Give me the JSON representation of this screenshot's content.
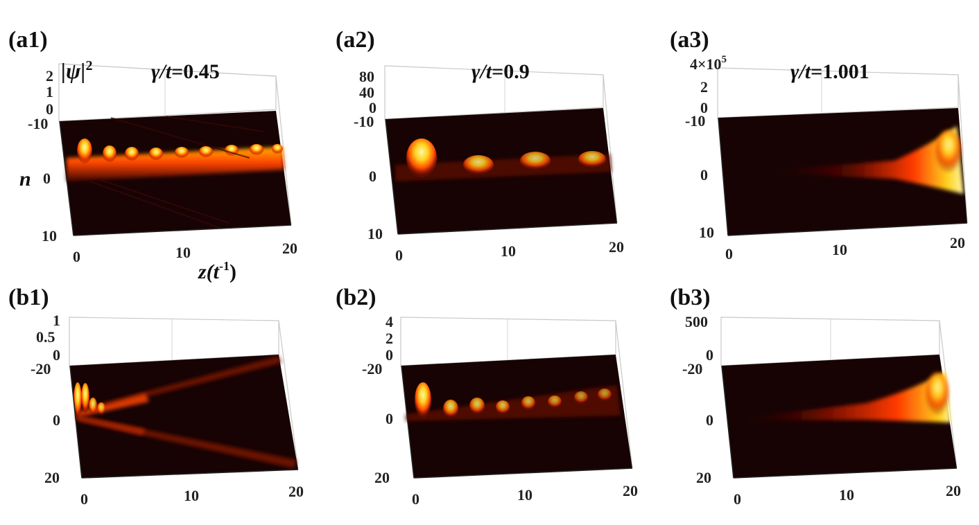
{
  "chart_data": [
    {
      "type": "surface",
      "panel": "(a1)",
      "gamma_prefix": "γ/t",
      "gamma_value": "=0.45",
      "zlabel": "|ψ|",
      "zlabel_exp": "2",
      "ylabel": "n",
      "xlabel": "z(t",
      "xlabel_exp": "-1",
      "xlabel_close": ")",
      "z_ticks": [
        "2",
        "1",
        "0"
      ],
      "n_ticks": [
        "-10",
        "0",
        "10"
      ],
      "z_axis_ticks": [
        "0",
        "10",
        "20"
      ],
      "zlim": [
        0,
        2
      ],
      "nlim": [
        -10,
        10
      ],
      "xlim": [
        0,
        20
      ],
      "colormap": "hot"
    },
    {
      "type": "surface",
      "panel": "(a2)",
      "gamma_prefix": "γ/t",
      "gamma_value": "=0.9",
      "z_ticks": [
        "80",
        "40",
        "0"
      ],
      "n_ticks": [
        "-10",
        "0",
        "10"
      ],
      "z_axis_ticks": [
        "0",
        "10",
        "20"
      ],
      "zlim": [
        0,
        80
      ],
      "nlim": [
        -10,
        10
      ],
      "xlim": [
        0,
        20
      ],
      "colormap": "hot"
    },
    {
      "type": "surface",
      "panel": "(a3)",
      "gamma_prefix": "γ/t",
      "gamma_value": "=1.001",
      "z_multiplier": "4×10",
      "z_multiplier_exp": "5",
      "z_ticks": [
        "2",
        "0"
      ],
      "n_ticks": [
        "-10",
        "0",
        "10"
      ],
      "z_axis_ticks": [
        "0",
        "10",
        "20"
      ],
      "zlim": [
        0,
        400000
      ],
      "nlim": [
        -10,
        10
      ],
      "xlim": [
        0,
        20
      ],
      "colormap": "hot"
    },
    {
      "type": "surface",
      "panel": "(b1)",
      "z_ticks": [
        "1",
        "0.5",
        "0"
      ],
      "n_ticks": [
        "-20",
        "0",
        "20"
      ],
      "z_axis_ticks": [
        "0",
        "10",
        "20"
      ],
      "zlim": [
        0,
        1
      ],
      "nlim": [
        -20,
        20
      ],
      "xlim": [
        0,
        20
      ],
      "colormap": "hot"
    },
    {
      "type": "surface",
      "panel": "(b2)",
      "z_ticks": [
        "4",
        "2",
        "0"
      ],
      "n_ticks": [
        "-20",
        "0",
        "20"
      ],
      "z_axis_ticks": [
        "0",
        "10",
        "20"
      ],
      "zlim": [
        0,
        4
      ],
      "nlim": [
        -20,
        20
      ],
      "xlim": [
        0,
        20
      ],
      "colormap": "hot"
    },
    {
      "type": "surface",
      "panel": "(b3)",
      "z_ticks": [
        "500",
        "0"
      ],
      "n_ticks": [
        "-20",
        "0",
        "20"
      ],
      "z_axis_ticks": [
        "0",
        "10",
        "20"
      ],
      "zlim": [
        0,
        500
      ],
      "nlim": [
        -20,
        20
      ],
      "xlim": [
        0,
        20
      ],
      "colormap": "hot"
    }
  ],
  "colors": {
    "surface_dark": "#170303",
    "hot_mid": "#ff3a00",
    "hot_high": "#ffd21f",
    "hot_peak": "#fff7a8",
    "box": "#c8c8c8"
  }
}
